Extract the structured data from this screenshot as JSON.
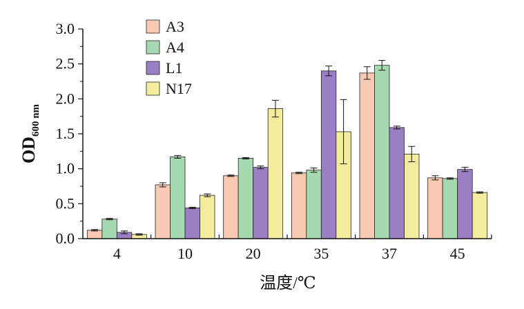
{
  "chart_data": {
    "type": "bar",
    "categories": [
      "4",
      "10",
      "20",
      "35",
      "37",
      "45"
    ],
    "series": [
      {
        "name": "A3",
        "color": "#f9c9b2",
        "values": [
          0.12,
          0.77,
          0.9,
          0.94,
          2.37,
          0.87
        ],
        "errors": [
          0.01,
          0.03,
          0.01,
          0.01,
          0.09,
          0.03
        ]
      },
      {
        "name": "A4",
        "color": "#a6d9b0",
        "values": [
          0.28,
          1.17,
          1.15,
          0.98,
          2.48,
          0.86
        ],
        "errors": [
          0.01,
          0.02,
          0.01,
          0.03,
          0.07,
          0.01
        ]
      },
      {
        "name": "L1",
        "color": "#9b7fc4",
        "values": [
          0.09,
          0.44,
          1.02,
          2.4,
          1.59,
          0.99
        ],
        "errors": [
          0.02,
          0.01,
          0.02,
          0.07,
          0.02,
          0.03
        ]
      },
      {
        "name": "N17",
        "color": "#f3ec9c",
        "values": [
          0.06,
          0.62,
          1.86,
          1.53,
          1.21,
          0.66
        ],
        "errors": [
          0.01,
          0.02,
          0.12,
          0.46,
          0.11,
          0.01
        ]
      }
    ],
    "ylabel_main": "OD",
    "ylabel_sub": "600 nm",
    "xlabel": "温度/℃",
    "ylim": [
      0,
      3.0
    ],
    "yticks": [
      "0.0",
      "0.5",
      "1.0",
      "1.5",
      "2.0",
      "2.5",
      "3.0"
    ],
    "grid": false,
    "legend_position": "top-left"
  }
}
